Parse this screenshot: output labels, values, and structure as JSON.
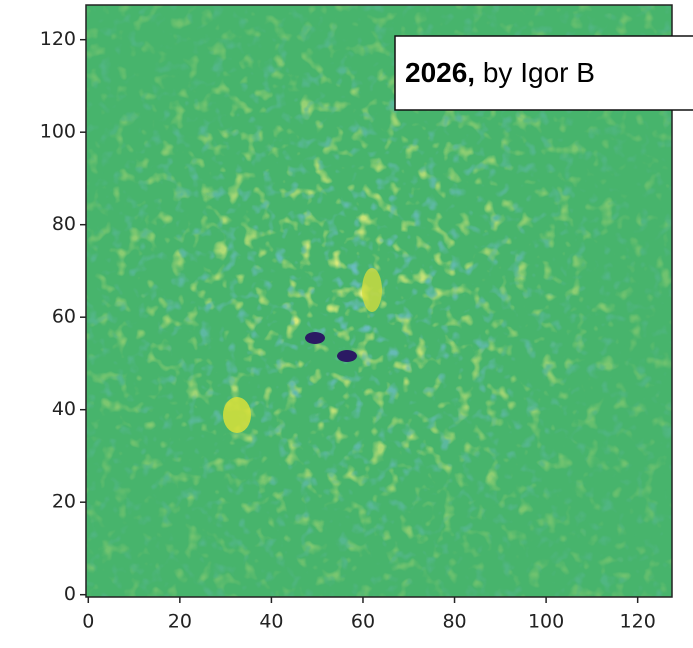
{
  "chart_data": {
    "type": "image",
    "xlim": [
      -0.5,
      127.5
    ],
    "ylim": [
      -0.5,
      127.5
    ],
    "xticks": [
      0,
      20,
      40,
      60,
      80,
      100,
      120
    ],
    "yticks": [
      0,
      20,
      40,
      60,
      80,
      100,
      120
    ],
    "annotation": {
      "bold": "2026,",
      "text": "by Igor B"
    }
  }
}
